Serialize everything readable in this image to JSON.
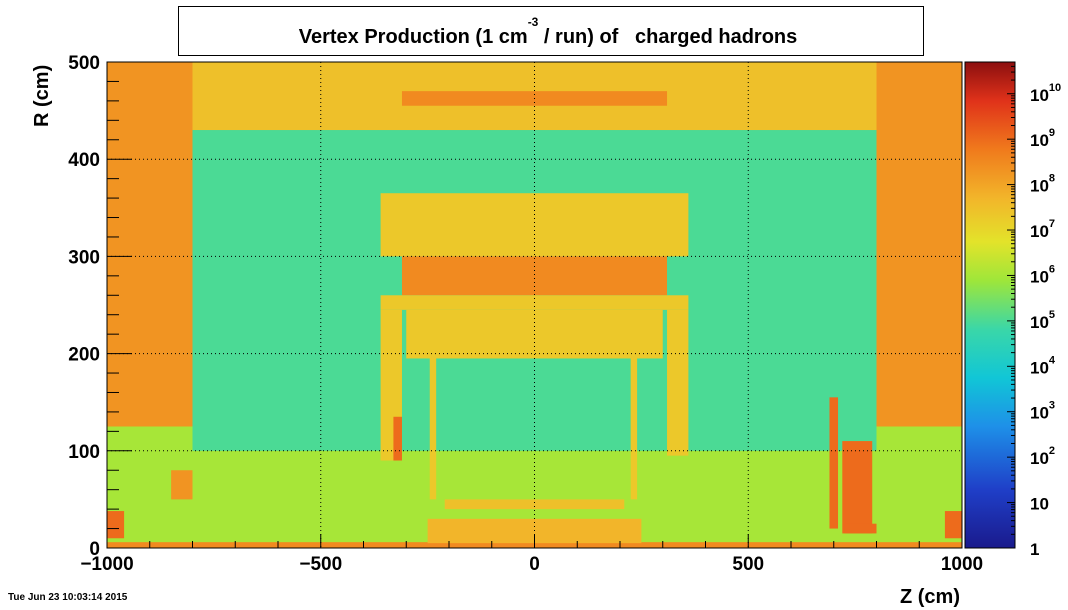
{
  "chart_data": {
    "type": "heatmap",
    "title": "Vertex Production (1 cm",
    "title_superscript": "-3",
    "title_rest": " / run) of   charged hadrons",
    "xlabel": "Z (cm)",
    "ylabel": "R (cm)",
    "xlim": [
      -1000,
      1000
    ],
    "ylim": [
      0,
      500
    ],
    "x_ticks": [
      -1000,
      -500,
      0,
      500,
      1000
    ],
    "x_tick_labels": [
      "−1000",
      "−500",
      "0",
      "500",
      "1000"
    ],
    "y_ticks": [
      0,
      100,
      200,
      300,
      400,
      500
    ],
    "y_tick_labels": [
      "0",
      "100",
      "200",
      "300",
      "400",
      "500"
    ],
    "grid": true,
    "colorbar": {
      "scale": "log",
      "range": [
        1,
        50000000000
      ],
      "labels": [
        {
          "base": "1",
          "exp": ""
        },
        {
          "base": "10",
          "exp": ""
        },
        {
          "base": "10",
          "exp": "2"
        },
        {
          "base": "10",
          "exp": "3"
        },
        {
          "base": "10",
          "exp": "4"
        },
        {
          "base": "10",
          "exp": "5"
        },
        {
          "base": "10",
          "exp": "6"
        },
        {
          "base": "10",
          "exp": "7"
        },
        {
          "base": "10",
          "exp": "8"
        },
        {
          "base": "10",
          "exp": "9"
        },
        {
          "base": "10",
          "exp": "10"
        }
      ]
    },
    "regions": [
      {
        "z": [
          -1000,
          1000
        ],
        "r": [
          0,
          500
        ],
        "value": 100000
      },
      {
        "z": [
          -1000,
          1000
        ],
        "r": [
          0,
          100
        ],
        "value": 1000000
      },
      {
        "z": [
          -1000,
          1000
        ],
        "r": [
          430,
          500
        ],
        "value": 30000000
      },
      {
        "z": [
          -1000,
          -800
        ],
        "r": [
          125,
          500
        ],
        "value": 200000000
      },
      {
        "z": [
          800,
          1000
        ],
        "r": [
          125,
          500
        ],
        "value": 200000000
      },
      {
        "z": [
          -1000,
          -800
        ],
        "r": [
          0,
          125
        ],
        "value": 1000000
      },
      {
        "z": [
          800,
          1000
        ],
        "r": [
          0,
          125
        ],
        "value": 1000000
      },
      {
        "z": [
          -310,
          310
        ],
        "r": [
          455,
          470
        ],
        "value": 300000000
      },
      {
        "z": [
          -360,
          360
        ],
        "r": [
          300,
          365
        ],
        "value": 20000000
      },
      {
        "z": [
          -310,
          310
        ],
        "r": [
          260,
          300
        ],
        "value": 300000000
      },
      {
        "z": [
          -360,
          360
        ],
        "r": [
          245,
          260
        ],
        "value": 20000000
      },
      {
        "z": [
          -300,
          300
        ],
        "r": [
          195,
          245
        ],
        "value": 20000000
      },
      {
        "z": [
          -360,
          -310
        ],
        "r": [
          90,
          245
        ],
        "value": 20000000
      },
      {
        "z": [
          310,
          360
        ],
        "r": [
          95,
          245
        ],
        "value": 20000000
      },
      {
        "z": [
          -330,
          -310
        ],
        "r": [
          90,
          135
        ],
        "value": 1000000000
      },
      {
        "z": [
          -245,
          -230
        ],
        "r": [
          50,
          200
        ],
        "value": 20000000
      },
      {
        "z": [
          225,
          240
        ],
        "r": [
          50,
          200
        ],
        "value": 20000000
      },
      {
        "z": [
          -210,
          210
        ],
        "r": [
          40,
          50
        ],
        "value": 30000000
      },
      {
        "z": [
          -850,
          -800
        ],
        "r": [
          50,
          80
        ],
        "value": 200000000
      },
      {
        "z": [
          -1000,
          -960
        ],
        "r": [
          10,
          38
        ],
        "value": 1000000000
      },
      {
        "z": [
          960,
          1000
        ],
        "r": [
          10,
          38
        ],
        "value": 1000000000
      },
      {
        "z": [
          690,
          710
        ],
        "r": [
          20,
          155
        ],
        "value": 1000000000
      },
      {
        "z": [
          720,
          790
        ],
        "r": [
          15,
          110
        ],
        "value": 1000000000
      },
      {
        "z": [
          725,
          800
        ],
        "r": [
          15,
          25
        ],
        "value": 1000000000
      },
      {
        "z": [
          -1000,
          1000
        ],
        "r": [
          0,
          6
        ],
        "value": 300000000
      },
      {
        "z": [
          -250,
          250
        ],
        "r": [
          5,
          30
        ],
        "value": 50000000
      }
    ]
  },
  "timestamp": "Tue Jun 23 10:03:14 2015"
}
